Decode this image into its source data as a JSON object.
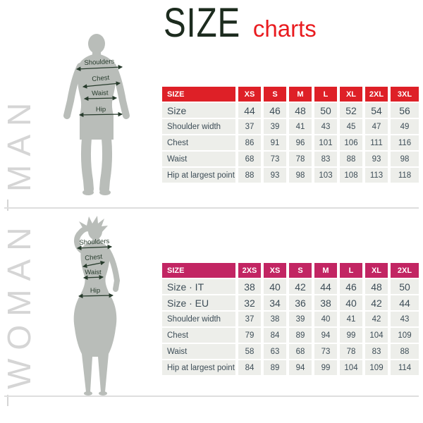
{
  "title": {
    "main": "SIZE",
    "accent": "charts"
  },
  "colors": {
    "title_main": "#1c2b1e",
    "title_accent": "#e91b1f",
    "man_header_bg": "#de2027",
    "woman_header_bg": "#c22563",
    "cell_bg": "#edeeea",
    "cell_text": "#3d4d57",
    "silhouette": "#b9bdb9",
    "side_label": "#d5d5d5",
    "divider": "#dedede",
    "measure_line": "#273b2c"
  },
  "man": {
    "side_label": "MAN",
    "figure_labels": [
      "Shoulders",
      "Chest",
      "Waist",
      "Hip"
    ],
    "table": {
      "header": [
        "SIZE",
        "XS",
        "S",
        "M",
        "L",
        "XL",
        "2XL",
        "3XL"
      ],
      "rows": [
        {
          "label": "Size",
          "emphasis": true,
          "values": [
            "44",
            "46",
            "48",
            "50",
            "52",
            "54",
            "56"
          ]
        },
        {
          "label": "Shoulder width",
          "values": [
            "37",
            "39",
            "41",
            "43",
            "45",
            "47",
            "49"
          ]
        },
        {
          "label": "Chest",
          "values": [
            "86",
            "91",
            "96",
            "101",
            "106",
            "111",
            "116"
          ]
        },
        {
          "label": "Waist",
          "values": [
            "68",
            "73",
            "78",
            "83",
            "88",
            "93",
            "98"
          ]
        },
        {
          "label": "Hip at largest point",
          "values": [
            "88",
            "93",
            "98",
            "103",
            "108",
            "113",
            "118"
          ]
        }
      ]
    }
  },
  "woman": {
    "side_label": "WOMAN",
    "figure_labels": [
      "Shoulders",
      "Chest",
      "Waist",
      "Hip"
    ],
    "table": {
      "header": [
        "SIZE",
        "2XS",
        "XS",
        "S",
        "M",
        "L",
        "XL",
        "2XL"
      ],
      "rows": [
        {
          "label": "Size · IT",
          "emphasis": true,
          "values": [
            "38",
            "40",
            "42",
            "44",
            "46",
            "48",
            "50"
          ]
        },
        {
          "label": "Size · EU",
          "emphasis": true,
          "values": [
            "32",
            "34",
            "36",
            "38",
            "40",
            "42",
            "44"
          ]
        },
        {
          "label": "Shoulder width",
          "values": [
            "37",
            "38",
            "39",
            "40",
            "41",
            "42",
            "43"
          ]
        },
        {
          "label": "Chest",
          "values": [
            "79",
            "84",
            "89",
            "94",
            "99",
            "104",
            "109"
          ]
        },
        {
          "label": "Waist",
          "values": [
            "58",
            "63",
            "68",
            "73",
            "78",
            "83",
            "88"
          ]
        },
        {
          "label": "Hip at largest point",
          "values": [
            "84",
            "89",
            "94",
            "99",
            "104",
            "109",
            "114"
          ]
        }
      ]
    }
  }
}
